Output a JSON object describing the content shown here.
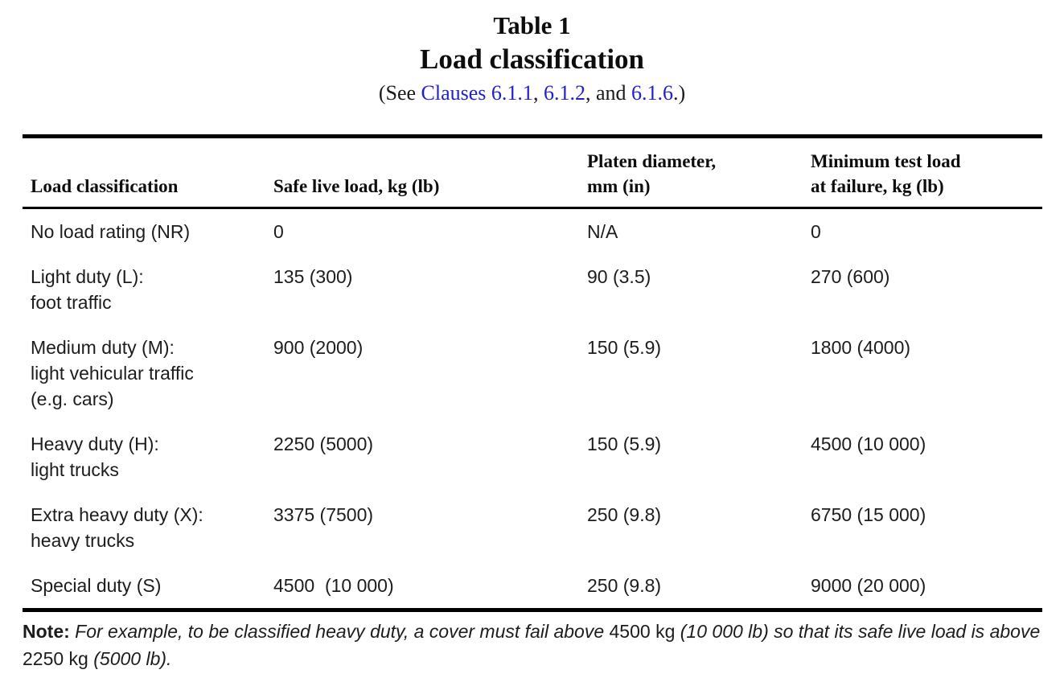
{
  "title": {
    "table_number": "Table 1",
    "table_title": "Load classification"
  },
  "subtitle": {
    "prefix": "(See ",
    "link1": "Clauses 6.1.1",
    "sep1": ", ",
    "link2": "6.1.2",
    "sep2": ", and ",
    "link3": "6.1.6",
    "suffix": ".)"
  },
  "table": {
    "headers": [
      "Load classification",
      "Safe live load, kg (lb)",
      "Platen diameter,\nmm (in)",
      "Minimum test load\nat failure, kg (lb)"
    ],
    "rows": [
      [
        "No load rating (NR)",
        "0",
        "N/A",
        "0"
      ],
      [
        "Light duty (L):\nfoot traffic",
        "135 (300)",
        "90 (3.5)",
        "270 (600)"
      ],
      [
        "Medium duty (M):\nlight vehicular traffic\n(e.g. cars)",
        "900 (2000)",
        "150 (5.9)",
        "1800 (4000)"
      ],
      [
        "Heavy duty (H):\nlight trucks",
        "2250 (5000)",
        "150 (5.9)",
        "4500 (10 000)"
      ],
      [
        "Extra heavy duty (X):\nheavy trucks",
        "3375 (7500)",
        "250 (9.8)",
        "6750 (15 000)"
      ],
      [
        "Special duty (S)",
        "4500  (10 000)",
        "250 (9.8)",
        "9000 (20 000)"
      ]
    ]
  },
  "note": {
    "segments": [
      {
        "text": "Note:",
        "style": "bold"
      },
      {
        "text": " For example, to be classified heavy duty, a cover must fail above ",
        "style": "italic"
      },
      {
        "text": "4500 kg",
        "style": "regular"
      },
      {
        "text": " (10 000 lb) so that its safe live load is above ",
        "style": "italic"
      },
      {
        "text": "2250 kg",
        "style": "regular"
      },
      {
        "text": " (5000 lb).",
        "style": "italic"
      }
    ]
  },
  "colors": {
    "link_blue": "#2121c8",
    "text": "#1c1c1c",
    "rule": "#000000"
  }
}
